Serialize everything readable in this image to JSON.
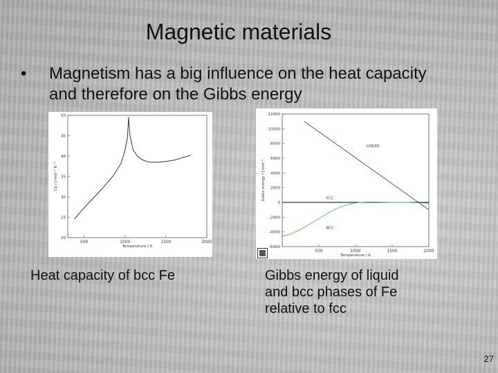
{
  "slide": {
    "title": "Magnetic materials",
    "bullet_marker": "•",
    "bullet": "Magnetism has a big influence on the heat capacity and therefore on the Gibbs energy",
    "caption_left": "Heat capacity of bcc Fe",
    "caption_right_lines": [
      "Gibbs energy of liquid",
      "and bcc phases of Fe",
      "relative to fcc"
    ],
    "page_number": "27",
    "colors": {
      "text": "#111111",
      "liquid": "#3344cc",
      "bcc": "#44cc44",
      "fcc": "#000000"
    }
  },
  "chart_data": [
    {
      "type": "line",
      "xlabel": "Temperature / K",
      "ylabel": "Cp / J mol⁻¹ K⁻¹",
      "xlim": [
        300,
        2000
      ],
      "ylim": [
        20,
        50
      ],
      "xticks": [
        500,
        1000,
        1500,
        2000
      ],
      "yticks": [
        20,
        25,
        30,
        35,
        40,
        45,
        50
      ],
      "grid": false,
      "series": [
        {
          "x": [
            380,
            450,
            550,
            650,
            750,
            850,
            950,
            1000,
            1030,
            1043,
            1060,
            1100,
            1150,
            1200,
            1250,
            1300,
            1400,
            1500,
            1600,
            1700,
            1800
          ],
          "y": [
            24.5,
            26.2,
            28.4,
            30.5,
            32.7,
            35.0,
            38.2,
            41.5,
            44.5,
            49.5,
            45.0,
            41.5,
            40.0,
            39.2,
            38.8,
            38.5,
            38.5,
            38.7,
            39.0,
            39.6,
            40.2
          ]
        }
      ]
    },
    {
      "type": "line",
      "ylabel": "Gibbs energy / J mol⁻¹",
      "xlabel": "Temperature / K",
      "xlim": [
        0,
        2000
      ],
      "ylim": [
        -6000,
        12000
      ],
      "xticks": [
        500,
        1000,
        1500,
        2000
      ],
      "yticks": [
        -6000,
        -4000,
        -2000,
        0,
        2000,
        4000,
        6000,
        8000,
        10000,
        12000
      ],
      "grid": false,
      "series": [
        {
          "name": "LIQUID",
          "x": [
            300,
            2000
          ],
          "y": [
            11000,
            -1000
          ]
        },
        {
          "name": "FCC",
          "x": [
            0,
            2000
          ],
          "y": [
            0,
            0
          ]
        },
        {
          "name": "BCC",
          "x": [
            0,
            100,
            200,
            300,
            400,
            500,
            600,
            700,
            800,
            900,
            1000,
            1050,
            1100,
            1185,
            1300,
            1500,
            1667,
            1811,
            2000
          ],
          "y": [
            -4600,
            -4350,
            -3900,
            -3400,
            -2800,
            -2200,
            -1600,
            -1050,
            -600,
            -280,
            -80,
            -20,
            30,
            60,
            40,
            10,
            0,
            -40,
            -100
          ]
        }
      ],
      "annotations": [
        "LIQUID",
        "FCC",
        "BCC"
      ]
    }
  ]
}
